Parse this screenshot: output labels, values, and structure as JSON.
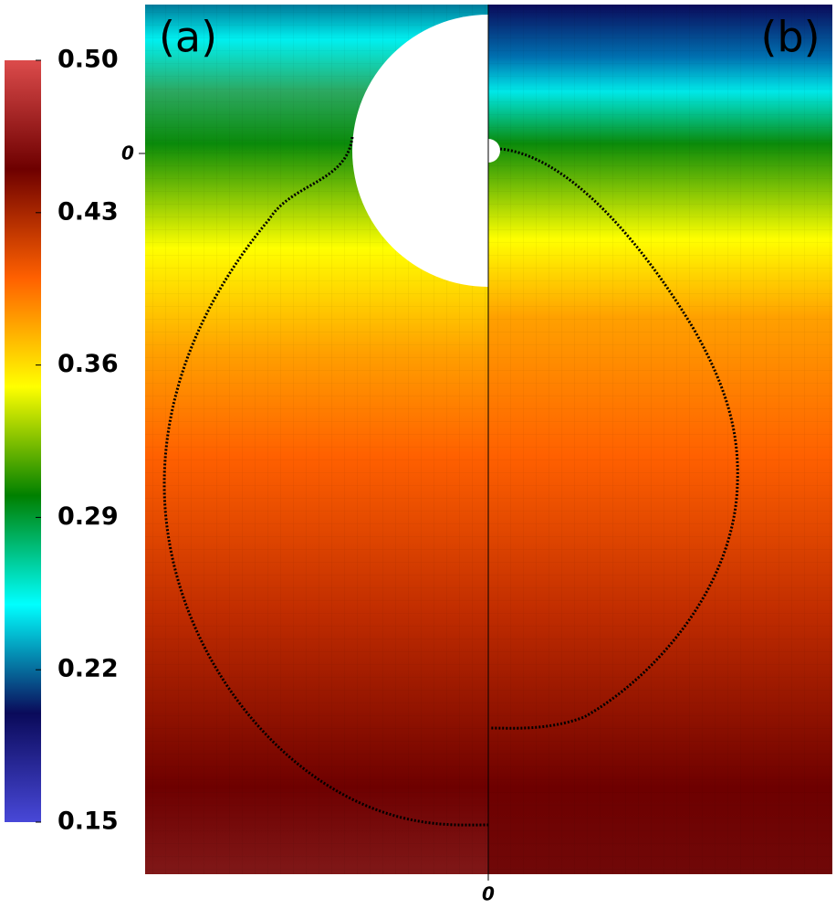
{
  "chart_data": {
    "type": "field",
    "panels": [
      {
        "label": "(a)"
      },
      {
        "label": "(b)"
      }
    ],
    "xticks": [
      0
    ],
    "yticks": [
      0
    ],
    "colorbar": {
      "lim": [
        0.15,
        0.5
      ],
      "ticks": [
        0.15,
        0.22,
        0.29,
        0.36,
        0.43,
        {
          "value": 0.5,
          "label": "0.50"
        }
      ],
      "colormap": [
        "#4848d8",
        "#0a0a5a",
        "#00ffff",
        "#008000",
        "#ffff00",
        "#ff6000",
        "#6e0000",
        "#dc4b4b"
      ]
    }
  }
}
